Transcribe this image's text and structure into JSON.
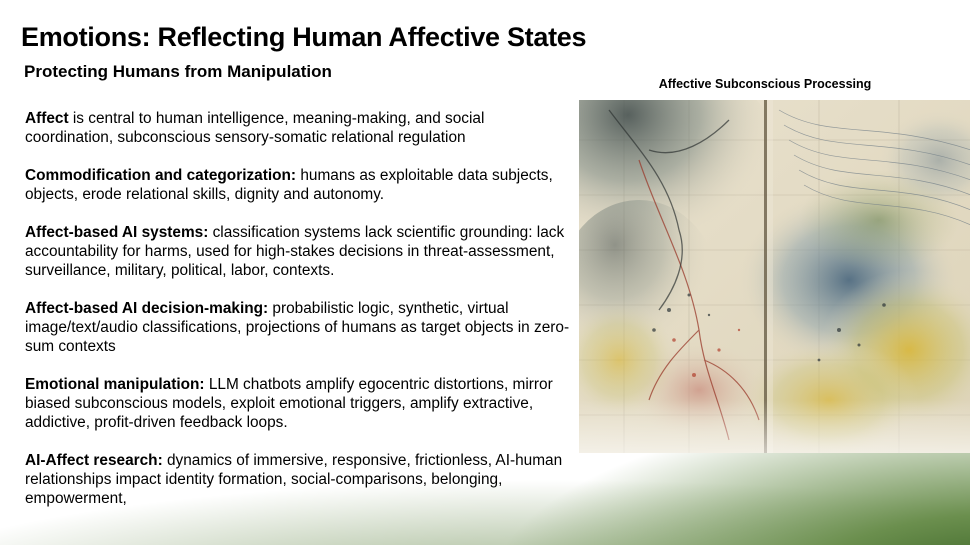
{
  "slide": {
    "title": "Emotions: Reflecting Human Affective States",
    "subtitle": "Protecting Humans from Manipulation",
    "items": [
      {
        "term": "Affect",
        "text": " is central to human intelligence, meaning-making, and social coordination, subconscious sensory-somatic relational regulation"
      },
      {
        "term": "Commodification and categorization:",
        "text": " humans as exploitable data subjects, objects, erode relational skills, dignity and autonomy."
      },
      {
        "term": "Affect-based AI systems:",
        "text": " classification systems lack scientific grounding: lack accountability for harms, used for high-stakes decisions in threat-assessment, surveillance, military, political, labor, contexts."
      },
      {
        "term": "Affect-based AI decision-making:",
        "text": " probabilistic logic, synthetic, virtual image/text/audio classifications, projections of humans as target objects in zero-sum contexts"
      },
      {
        "term": "Emotional manipulation:",
        "text": " LLM chatbots amplify egocentric distortions, mirror biased subconscious models, exploit emotional triggers, amplify extractive, addictive, profit-driven feedback loops."
      },
      {
        "term": "AI-Affect research:",
        "text": " dynamics of immersive, responsive, frictionless, AI-human relationships impact identity formation, social-comparisons, belonging, empowerment,"
      }
    ],
    "figure": {
      "caption": "Affective Subconscious Processing"
    }
  },
  "colors": {
    "background": "#ffffff",
    "corner_gradient": "#2f5a1c",
    "text": "#000000"
  }
}
